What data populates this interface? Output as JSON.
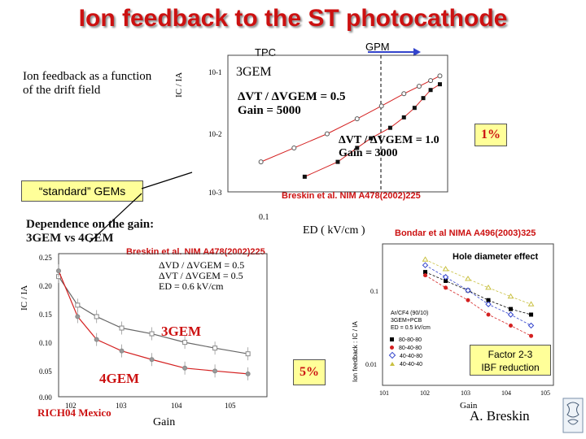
{
  "slide": {
    "title": "Ion feedback to the ST photocathode",
    "tpc_label": "TPC",
    "gpm_label": "GPM",
    "desc1_line1": "Ion feedback as a function",
    "desc1_line2": "of the drift field",
    "standard_gems": "“standard” GEMs",
    "desc2_line1": "Dependence on the gain:",
    "desc2_line2": "3GEM vs 4GEM",
    "ref_top": "Breskin et al. NIM A478(2002)225",
    "ref_mid": "Breskin et al. NIM A478(2002)225",
    "ref_right": "Bondar et al NIMA A496(2003)325",
    "callout_1pct": "1%",
    "callout_5pct": "5%",
    "factor_line1": "Factor 2-3",
    "factor_line2": "IBF reduction",
    "footer_left": "RICH04 Mexico",
    "footer_right": "A. Breskin",
    "colors": {
      "title": "#cc1111",
      "callout_bg": "#ffff99",
      "arrow": "#3344cc",
      "fit_red": "#d42020"
    }
  },
  "plot_top": {
    "label_3gem": "3GEM",
    "annot1_line1": "ΔVT / ΔVGEM = 0.5",
    "annot1_line2": "Gain = 5000",
    "annot2_line1": "ΔVT / ΔVGEM = 1.0",
    "annot2_line2": "Gain = 3000",
    "ytick_1": "10-1",
    "ytick_2": "10-2",
    "ytick_3": "10-3",
    "xtick_1": "0.1",
    "xlabel": "ED ( kV/cm )",
    "ylabel": "IC / IA"
  },
  "plot_bottom_left": {
    "label_3gem": "3GEM",
    "label_4gem": "4GEM",
    "annot_line1": "ΔVD / ΔVGEM = 0.5",
    "annot_line2": "ΔVT / ΔVGEM = 0.5",
    "annot_line3": "ED = 0.6 kV/cm",
    "xlabel": "Gain",
    "ylabel": "IC / IA",
    "yticks": [
      "0.25",
      "0.20",
      "0.15",
      "0.10",
      "0.05",
      "0.00"
    ],
    "xticks": [
      "102",
      "103",
      "104",
      "105"
    ]
  },
  "plot_bottom_right": {
    "title": "Hole diameter effect",
    "info_line1": "Ar/CF4 (90/10)",
    "info_line2": "3GEM+PCB",
    "info_line3": "ED = 0.5 kV/cm",
    "legend": [
      "80-80-80",
      "80-40-80",
      "40-40-80",
      "40-40-40"
    ],
    "yticks": [
      "0.1",
      "0.01"
    ],
    "xticks": [
      "101",
      "102",
      "103",
      "104",
      "105"
    ],
    "xlabel": "Gain",
    "ylabel": "Ion feedback : IC / IA"
  },
  "chart_data": [
    {
      "type": "scatter",
      "title": "",
      "xlabel": "ED ( kV/cm )",
      "ylabel": "IC / IA",
      "xscale": "log",
      "yscale": "log",
      "series": [
        {
          "x": [
            0.02,
            0.04,
            0.08,
            0.15,
            0.25,
            0.4,
            0.55,
            0.7,
            0.85
          ],
          "y": [
            0.0032,
            0.0055,
            0.0095,
            0.017,
            0.028,
            0.045,
            0.06,
            0.075,
            0.09
          ]
        },
        {
          "x": [
            0.05,
            0.1,
            0.15,
            0.2,
            0.3,
            0.4,
            0.5,
            0.6,
            0.7,
            0.85
          ],
          "y": [
            0.0018,
            0.0032,
            0.0055,
            0.008,
            0.012,
            0.018,
            0.026,
            0.038,
            0.052,
            0.065
          ]
        }
      ]
    },
    {
      "type": "line",
      "title": "",
      "xlabel": "Gain",
      "ylabel": "IC / IA",
      "xscale": "log",
      "ylim": [
        0,
        0.25
      ],
      "series": [
        {
          "name": "3GEM",
          "x": [
            100,
            200,
            400,
            1000,
            3000,
            10000,
            30000,
            100000
          ],
          "y": [
            0.21,
            0.16,
            0.14,
            0.12,
            0.11,
            0.095,
            0.085,
            0.075
          ]
        },
        {
          "name": "4GEM",
          "x": [
            100,
            200,
            400,
            1000,
            3000,
            10000,
            30000,
            100000
          ],
          "y": [
            0.22,
            0.14,
            0.1,
            0.08,
            0.065,
            0.05,
            0.045,
            0.04
          ]
        }
      ]
    },
    {
      "type": "scatter",
      "title": "Hole diameter effect",
      "xlabel": "Gain",
      "ylabel": "Ion feedback : IC / IA",
      "xscale": "log",
      "yscale": "log",
      "series": [
        {
          "name": "80-80-80",
          "x": [
            100,
            300,
            1000,
            3000,
            10000,
            30000
          ],
          "y": [
            0.2,
            0.15,
            0.11,
            0.08,
            0.06,
            0.05
          ]
        },
        {
          "name": "80-40-80",
          "x": [
            100,
            300,
            1000,
            3000,
            10000,
            30000
          ],
          "y": [
            0.18,
            0.12,
            0.08,
            0.05,
            0.035,
            0.025
          ]
        },
        {
          "name": "40-40-80",
          "x": [
            100,
            300,
            1000,
            3000,
            10000,
            30000
          ],
          "y": [
            0.25,
            0.17,
            0.11,
            0.07,
            0.05,
            0.035
          ]
        },
        {
          "name": "40-40-40",
          "x": [
            100,
            300,
            1000,
            3000,
            10000,
            30000
          ],
          "y": [
            0.3,
            0.22,
            0.16,
            0.12,
            0.09,
            0.07
          ]
        }
      ]
    }
  ]
}
